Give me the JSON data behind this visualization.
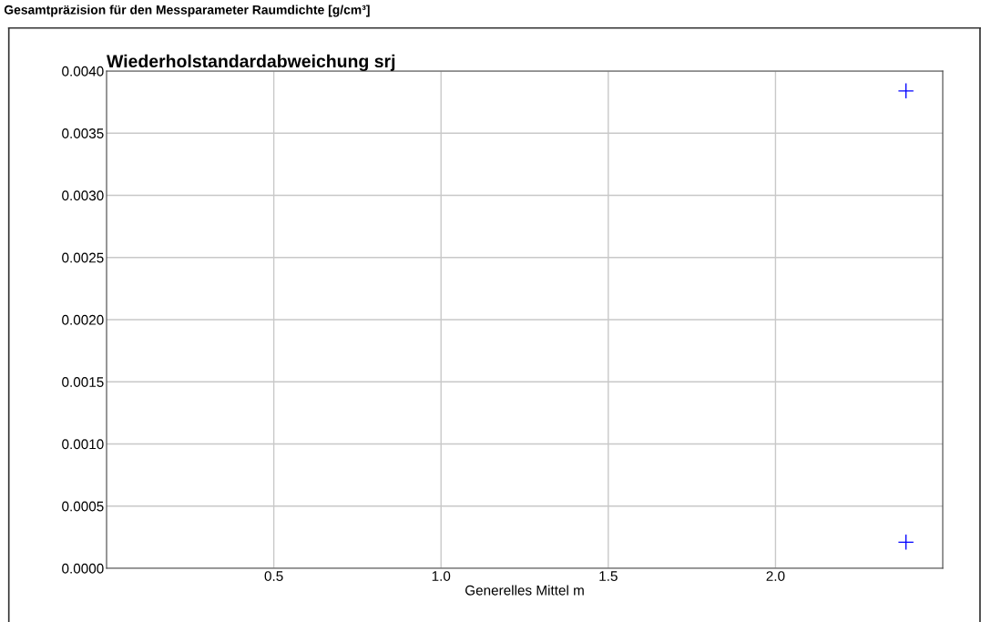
{
  "chart_data": {
    "type": "scatter",
    "title": "Wiederholstandardabweichung srj",
    "annotations": [
      "Gesamtpräzision für den Messparameter Raumdichte [g/cm³]"
    ],
    "xlabel": "Generelles Mittel m",
    "x": [
      2.39,
      2.39
    ],
    "series": [
      {
        "color": "#0000ff",
        "values": [
          0.00384,
          0.00021
        ]
      }
    ],
    "marker": "cross",
    "xlim": [
      0,
      2.5
    ],
    "xticks": [
      0.5,
      {
        "value": 1,
        "label": "1.0"
      },
      1.5,
      {
        "value": 2,
        "label": "2.0"
      }
    ],
    "ylim": [
      0,
      0.004
    ],
    "yticks": [
      {
        "value": 0,
        "label": "0.0000"
      },
      {
        "value": 0.0005,
        "label": "0.0005"
      },
      {
        "value": 0.001,
        "label": "0.0010"
      },
      {
        "value": 0.0015,
        "label": "0.0015"
      },
      {
        "value": 0.002,
        "label": "0.0020"
      },
      {
        "value": 0.0025,
        "label": "0.0025"
      },
      {
        "value": 0.003,
        "label": "0.0030"
      },
      {
        "value": 0.0035,
        "label": "0.0035"
      },
      {
        "value": 0.004,
        "label": "0.0040"
      }
    ],
    "grid": true
  }
}
